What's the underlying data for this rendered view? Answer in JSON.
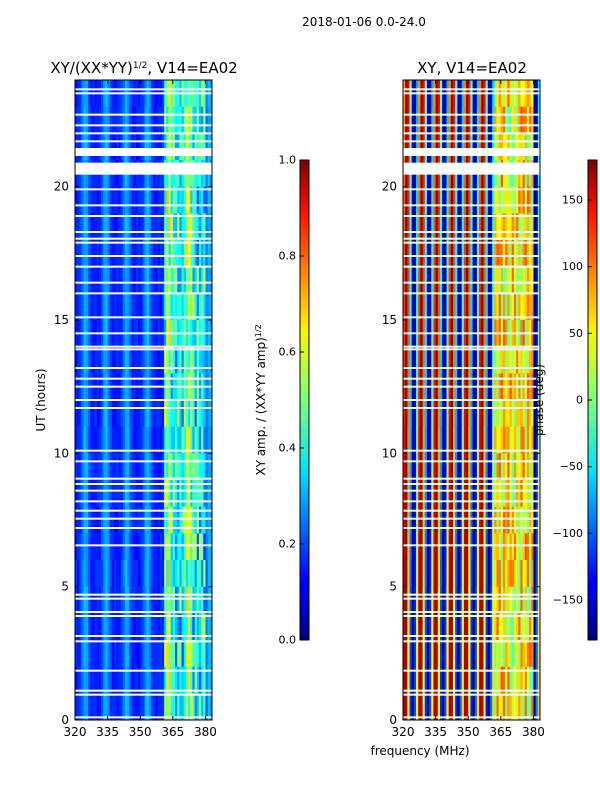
{
  "figure": {
    "suptitle": "2018-01-06 0.0-24.0",
    "xlabel": "frequency (MHz)"
  },
  "chart_data": [
    {
      "type": "heatmap",
      "title": "XY/(XX*YY)",
      "title_exponent": "1/2",
      "title_suffix": ", V14=EA02",
      "xlabel": "",
      "ylabel": "UT (hours)",
      "xlim": [
        320,
        383
      ],
      "ylim": [
        0,
        24
      ],
      "x_ticks": [
        "320",
        "335",
        "350",
        "365",
        "380"
      ],
      "x_tick_values": [
        320,
        335,
        350,
        365,
        380
      ],
      "y_ticks": [
        "0",
        "5",
        "10",
        "15",
        "20"
      ],
      "y_tick_values": [
        0,
        5,
        10,
        15,
        20
      ],
      "colormap": "jet",
      "colorbar": {
        "label": "XY amp. / (XX*YY amp)",
        "label_exponent": "1/2",
        "range": [
          0.0,
          1.0
        ],
        "ticks": [
          "0.0",
          "0.2",
          "0.4",
          "0.6",
          "0.8",
          "1.0"
        ],
        "tick_values": [
          0.0,
          0.2,
          0.4,
          0.6,
          0.8,
          1.0
        ]
      },
      "gap_hours": [
        0.1,
        0.95,
        1.1,
        1.85,
        2.95,
        3.15,
        3.9,
        4.05,
        4.55,
        4.7,
        6.55,
        7.2,
        7.55,
        7.85,
        8.2,
        8.6,
        8.85,
        9.05,
        9.7,
        10.1,
        11.7,
        12.0,
        12.5,
        12.8,
        13.2,
        13.9,
        14.0,
        14.5,
        15.1,
        16.0,
        16.4,
        17.0,
        17.4,
        17.9,
        18.05,
        18.3,
        18.9,
        19.3,
        19.9,
        21.7,
        22.0,
        22.3,
        22.7,
        23.5,
        23.65
      ],
      "gap_bands": [
        [
          20.45,
          20.9
        ],
        [
          21.15,
          21.45
        ]
      ]
    },
    {
      "type": "heatmap",
      "title": "XY, V14=EA02",
      "xlabel": "",
      "ylabel": "",
      "xlim": [
        320,
        383
      ],
      "ylim": [
        0,
        24
      ],
      "x_ticks": [
        "320",
        "335",
        "350",
        "365",
        "380"
      ],
      "x_tick_values": [
        320,
        335,
        350,
        365,
        380
      ],
      "y_ticks": [
        "0",
        "5",
        "10",
        "15",
        "20"
      ],
      "y_tick_values": [
        0,
        5,
        10,
        15,
        20
      ],
      "colormap": "jet",
      "colorbar": {
        "label": "phase (deg)",
        "range": [
          -180,
          180
        ],
        "ticks": [
          "−150",
          "−100",
          "−50",
          "0",
          "50",
          "100",
          "150"
        ],
        "tick_values": [
          -150,
          -100,
          -50,
          0,
          50,
          100,
          150
        ]
      },
      "gap_hours": [
        0.1,
        0.95,
        1.1,
        1.85,
        2.95,
        3.15,
        3.9,
        4.05,
        4.55,
        4.7,
        6.55,
        7.2,
        7.55,
        7.85,
        8.2,
        8.6,
        8.85,
        9.05,
        9.7,
        10.1,
        11.7,
        12.0,
        12.5,
        12.8,
        13.2,
        13.9,
        14.0,
        14.5,
        15.1,
        16.0,
        16.4,
        17.0,
        17.4,
        17.9,
        18.05,
        18.3,
        18.9,
        19.3,
        19.9,
        21.7,
        22.0,
        22.3,
        22.7,
        23.5,
        23.65
      ],
      "gap_bands": [
        [
          20.45,
          20.9
        ],
        [
          21.15,
          21.45
        ]
      ]
    }
  ]
}
